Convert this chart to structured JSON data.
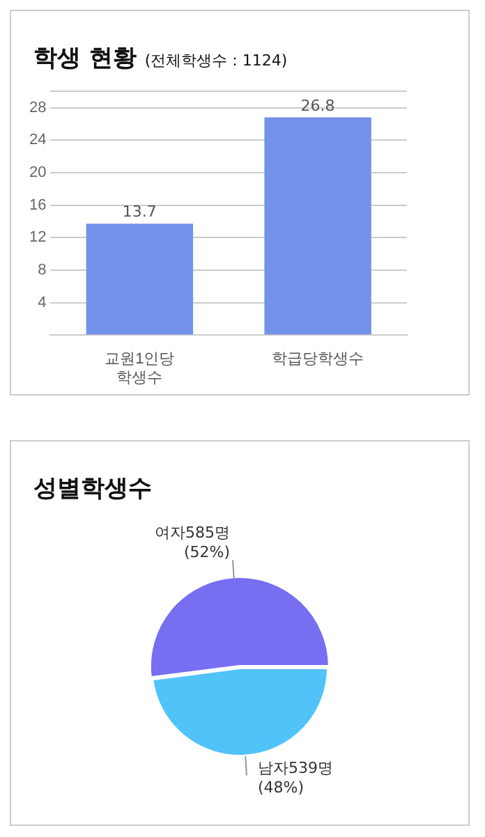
{
  "chart_data": [
    {
      "type": "bar",
      "title": "학생 현황",
      "subtitle": "(전체학생수 : 1124)",
      "categories": [
        "교원1인당\n학생수",
        "학급당학생수"
      ],
      "values": [
        13.7,
        26.8
      ],
      "color": "#7492ea",
      "ylim": [
        0,
        30
      ],
      "yticks": [
        {
          "value": 0,
          "label": null
        },
        4,
        8,
        12,
        16,
        20,
        24,
        28,
        {
          "value": 30,
          "label": null
        }
      ],
      "grid": "y",
      "data_labels": true,
      "legend": false
    },
    {
      "type": "pie",
      "title": "성별학생수",
      "categories": [
        "남자539명\n(48%)",
        "여자585명\n(52%)"
      ],
      "values": [
        539,
        585
      ],
      "colors": [
        "#52c3f8",
        "#786ef2"
      ],
      "legend": false
    }
  ]
}
